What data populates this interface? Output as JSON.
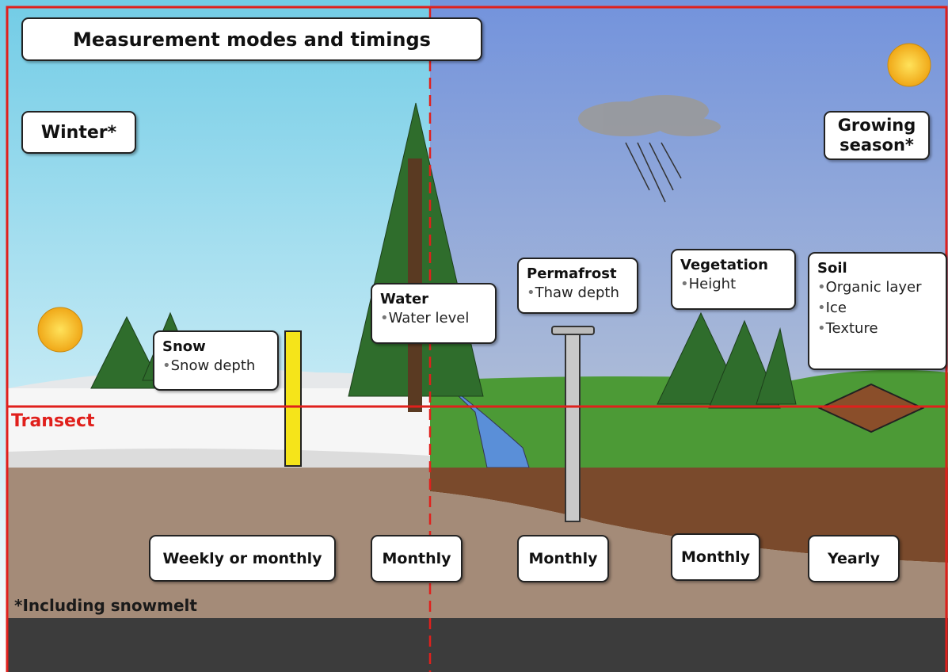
{
  "title": "Measurement modes and timings",
  "seasons": {
    "winter": "Winter*",
    "growing": "Growing season*"
  },
  "transect_label": "Transect",
  "footnote": "*Including snowmelt",
  "measurements": [
    {
      "name": "Snow",
      "items": [
        "Snow depth"
      ],
      "timing": "Weekly or monthly"
    },
    {
      "name": "Water",
      "items": [
        "Water level"
      ],
      "timing": "Monthly"
    },
    {
      "name": "Permafrost",
      "items": [
        "Thaw depth"
      ],
      "timing": "Monthly"
    },
    {
      "name": "Vegetation",
      "items": [
        "Height"
      ],
      "timing": "Monthly"
    },
    {
      "name": "Soil",
      "items": [
        "Organic layer",
        "Ice",
        "Texture"
      ],
      "timing": "Yearly"
    }
  ]
}
